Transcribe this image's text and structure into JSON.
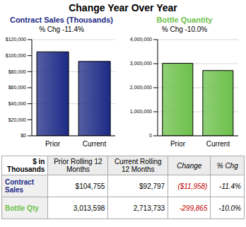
{
  "title": "Change Year Over Year",
  "chart_data": [
    {
      "type": "bar",
      "title": "Contract Sales (Thousands)",
      "subtitle": "% Chg -11.4%",
      "categories": [
        "Prior",
        "Current"
      ],
      "values": [
        104755,
        92797
      ],
      "color": "#1c2a85",
      "ylim": [
        0,
        120000
      ],
      "yticks": [
        {
          "value": 0,
          "label": "$0"
        },
        {
          "value": 20000,
          "label": "$20,000"
        },
        {
          "value": 40000,
          "label": "$40,000"
        },
        {
          "value": 60000,
          "label": "$60,000"
        },
        {
          "value": 80000,
          "label": "$80,000"
        },
        {
          "value": 100000,
          "label": "$100,000"
        },
        {
          "value": 120000,
          "label": "$120,000"
        }
      ],
      "grid": true
    },
    {
      "type": "bar",
      "title": "Bottle Quantity",
      "subtitle": "% Chg -10.0%",
      "categories": [
        "Prior",
        "Current"
      ],
      "values": [
        3013598,
        2713733
      ],
      "color": "#6cc04a",
      "ylim": [
        0,
        4000000
      ],
      "yticks": [
        0,
        {
          "value": 1000000,
          "label": "1,000,000"
        },
        {
          "value": 2000000,
          "label": "2,000,000"
        },
        {
          "value": 3000000,
          "label": "3,000,000"
        },
        {
          "value": 4000000,
          "label": "4,000,000"
        }
      ],
      "grid": true
    }
  ],
  "table": {
    "header": [
      "$ in Thousands",
      "Prior Rolling 12 Months",
      "Current Rolling 12 Months",
      "Change",
      "% Chg"
    ],
    "rows": [
      [
        "Contract Sales",
        "$104,755",
        "$92,797",
        "($11,958)",
        "-11.4%"
      ],
      [
        "Bottle Qty",
        "3,013,598",
        "2,713,733",
        "-299,865",
        "-10.0%"
      ]
    ]
  }
}
